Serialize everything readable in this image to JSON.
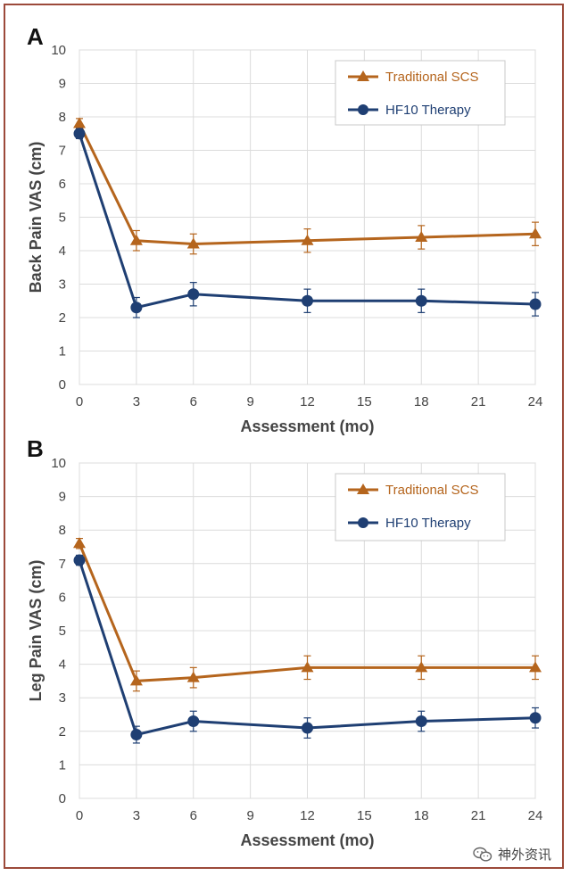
{
  "chart_data": [
    {
      "panel": "A",
      "type": "line",
      "ylabel": "Back Pain VAS (cm)",
      "xlabel": "Assessment (mo)",
      "xlim": [
        0,
        24
      ],
      "ylim": [
        0,
        10
      ],
      "xticks": [
        0,
        3,
        6,
        9,
        12,
        15,
        18,
        21,
        24
      ],
      "yticks": [
        0,
        1,
        2,
        3,
        4,
        5,
        6,
        7,
        8,
        9,
        10
      ],
      "grid": true,
      "legend_position": "top-right",
      "series": [
        {
          "name": "Traditional SCS",
          "color": "#b5651d",
          "marker": "triangle",
          "x": [
            0,
            3,
            6,
            12,
            18,
            24
          ],
          "y": [
            7.8,
            4.3,
            4.2,
            4.3,
            4.4,
            4.5
          ],
          "err": [
            0.15,
            0.3,
            0.3,
            0.35,
            0.35,
            0.35
          ]
        },
        {
          "name": "HF10 Therapy",
          "color": "#1f3f73",
          "marker": "circle",
          "x": [
            0,
            3,
            6,
            12,
            18,
            24
          ],
          "y": [
            7.5,
            2.3,
            2.7,
            2.5,
            2.5,
            2.4
          ],
          "err": [
            0.15,
            0.3,
            0.35,
            0.35,
            0.35,
            0.35
          ]
        }
      ]
    },
    {
      "panel": "B",
      "type": "line",
      "ylabel": "Leg Pain VAS (cm)",
      "xlabel": "Assessment (mo)",
      "xlim": [
        0,
        24
      ],
      "ylim": [
        0,
        10
      ],
      "xticks": [
        0,
        3,
        6,
        9,
        12,
        15,
        18,
        21,
        24
      ],
      "yticks": [
        0,
        1,
        2,
        3,
        4,
        5,
        6,
        7,
        8,
        9,
        10
      ],
      "grid": true,
      "legend_position": "top-right",
      "series": [
        {
          "name": "Traditional SCS",
          "color": "#b5651d",
          "marker": "triangle",
          "x": [
            0,
            3,
            6,
            12,
            18,
            24
          ],
          "y": [
            7.6,
            3.5,
            3.6,
            3.9,
            3.9,
            3.9
          ],
          "err": [
            0.15,
            0.3,
            0.3,
            0.35,
            0.35,
            0.35
          ]
        },
        {
          "name": "HF10 Therapy",
          "color": "#1f3f73",
          "marker": "circle",
          "x": [
            0,
            3,
            6,
            12,
            18,
            24
          ],
          "y": [
            7.1,
            1.9,
            2.3,
            2.1,
            2.3,
            2.4
          ],
          "err": [
            0.15,
            0.25,
            0.3,
            0.3,
            0.3,
            0.3
          ]
        }
      ]
    }
  ],
  "watermark": {
    "text": "神外资讯",
    "icon": "wechat-icon"
  }
}
